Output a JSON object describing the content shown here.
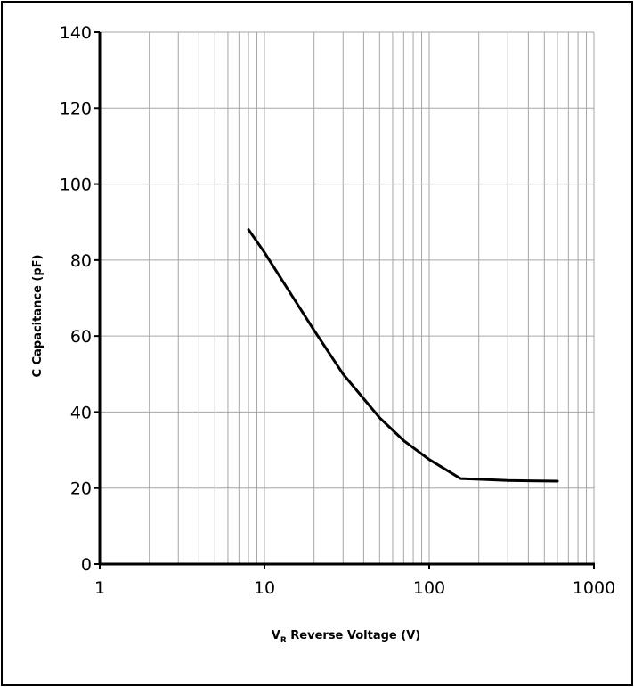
{
  "chart_data": {
    "type": "line",
    "title": "",
    "xlabel": {
      "main": "V",
      "subscript": "R",
      "rest": " Reverse Voltage (V)"
    },
    "ylabel": "C Capacitance (pF)",
    "x_scale": "log",
    "xlim": [
      1,
      1000
    ],
    "ylim": [
      0,
      140
    ],
    "grid": true,
    "x_ticks": [
      1,
      10,
      100,
      1000
    ],
    "x_tick_labels": [
      "1",
      "10",
      "100",
      "1000"
    ],
    "y_ticks": [
      0,
      20,
      40,
      60,
      80,
      100,
      120,
      140
    ],
    "y_tick_labels": [
      "0",
      "20",
      "40",
      "60",
      "80",
      "100",
      "120",
      "140"
    ],
    "series": [
      {
        "color": "#000000",
        "x": [
          8,
          10,
          15,
          20,
          30,
          40,
          50,
          70,
          100,
          155,
          200,
          300,
          400,
          600
        ],
        "y": [
          88,
          82,
          70,
          61.5,
          50,
          43.5,
          38.5,
          32.5,
          27.5,
          22.5,
          22.3,
          22.0,
          21.9,
          21.8
        ]
      }
    ]
  }
}
